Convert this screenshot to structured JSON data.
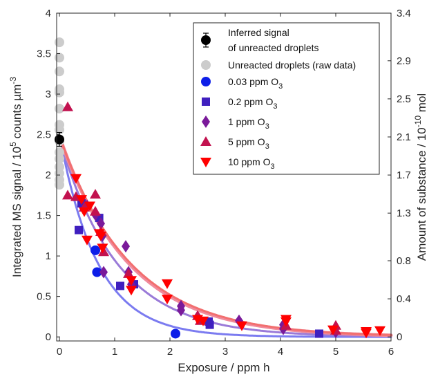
{
  "chart_data": {
    "type": "scatter",
    "xlabel": "Exposure / ppm h",
    "ylabel_left": {
      "text": "Integrated MS signal / 10",
      "sup1": "5",
      "mid": " counts µm",
      "sup2": "-3"
    },
    "ylabel_right": {
      "text": "Amount of substance / 10",
      "sup": "-10",
      "tail": " mol"
    },
    "xlim": [
      -0.05,
      6
    ],
    "ylim": [
      -0.05,
      4
    ],
    "x_ticks": [
      0,
      1,
      2,
      3,
      4,
      5,
      6
    ],
    "y_ticks": [
      0,
      0.5,
      1,
      1.5,
      2,
      2.5,
      3,
      3.5,
      4
    ],
    "x_tick_labels": [
      "0",
      "1",
      "2",
      "3",
      "4",
      "5",
      "6"
    ],
    "y_tick_labels": [
      "0",
      "0.5",
      "1",
      "1.5",
      "2",
      "2.5",
      "3",
      "3.5",
      "4"
    ],
    "right_ticks": [
      0,
      0.4,
      0.8,
      1.3,
      1.7,
      2.1,
      2.5,
      2.9,
      3.4
    ],
    "right_tick_labels": [
      "0",
      "0.4",
      "0.8",
      "1.3",
      "1.7",
      "2.1",
      "2.5",
      "2.9",
      "3.4"
    ],
    "legend_position": "top-right",
    "series": [
      {
        "name": "Inferred signal",
        "name2": "of unreacted droplets",
        "marker": "errorbar",
        "color": "#000000",
        "points": [
          [
            0.0,
            2.44
          ]
        ],
        "err": 0.07
      },
      {
        "name": "Unreacted droplets (raw data)",
        "marker": "circle",
        "color": "#cccccc",
        "points": [
          [
            0.0,
            3.64
          ],
          [
            0.0,
            3.45
          ],
          [
            0.0,
            3.28
          ],
          [
            0.0,
            3.06
          ],
          [
            0.0,
            3.02
          ],
          [
            0.0,
            2.82
          ],
          [
            0.0,
            2.62
          ],
          [
            0.0,
            2.56
          ],
          [
            0.0,
            2.42
          ],
          [
            0.0,
            2.28
          ],
          [
            0.0,
            2.2
          ],
          [
            0.0,
            2.1
          ],
          [
            0.0,
            2.02
          ],
          [
            0.0,
            1.94
          ],
          [
            0.0,
            1.88
          ]
        ]
      },
      {
        "name": "0.03 ppm O",
        "sub": "3",
        "marker": "circle",
        "color": "#0d1ee8",
        "points": [
          [
            0.65,
            1.07
          ],
          [
            0.68,
            0.8
          ],
          [
            2.1,
            0.04
          ]
        ]
      },
      {
        "name": "0.2 ppm O",
        "sub": "3",
        "marker": "square",
        "color": "#3f1fbf",
        "points": [
          [
            0.35,
            1.32
          ],
          [
            0.4,
            1.65
          ],
          [
            0.72,
            1.47
          ],
          [
            1.1,
            0.63
          ],
          [
            1.35,
            0.65
          ],
          [
            2.7,
            0.19
          ],
          [
            2.72,
            0.15
          ],
          [
            4.7,
            0.04
          ]
        ]
      },
      {
        "name": "1 ppm O",
        "sub": "3",
        "marker": "diamond",
        "color": "#7a1a9a",
        "points": [
          [
            0.5,
            1.62
          ],
          [
            0.65,
            1.51
          ],
          [
            0.75,
            1.4
          ],
          [
            0.78,
            1.25
          ],
          [
            0.8,
            0.8
          ],
          [
            1.2,
            1.12
          ],
          [
            1.25,
            0.8
          ],
          [
            1.3,
            0.65
          ],
          [
            2.2,
            0.38
          ],
          [
            2.2,
            0.33
          ],
          [
            2.5,
            0.25
          ],
          [
            3.25,
            0.2
          ],
          [
            4.05,
            0.15
          ],
          [
            4.05,
            0.1
          ],
          [
            5.0,
            0.11
          ],
          [
            5.0,
            0.06
          ]
        ]
      },
      {
        "name": "5 ppm O",
        "sub": "3",
        "marker": "triangle-up",
        "color": "#c2124f",
        "points": [
          [
            0.15,
            2.84
          ],
          [
            0.15,
            1.75
          ],
          [
            0.3,
            1.73
          ],
          [
            0.45,
            1.6
          ],
          [
            0.65,
            1.76
          ],
          [
            0.65,
            1.55
          ],
          [
            0.75,
            1.3
          ],
          [
            0.8,
            1.05
          ],
          [
            1.25,
            0.78
          ],
          [
            2.5,
            0.26
          ],
          [
            2.55,
            0.2
          ],
          [
            4.1,
            0.14
          ],
          [
            5.0,
            0.14
          ],
          [
            5.0,
            0.08
          ]
        ]
      },
      {
        "name": "10 ppm O",
        "sub": "3",
        "marker": "triangle-down",
        "color": "#ff0000",
        "points": [
          [
            0.3,
            1.96
          ],
          [
            0.4,
            1.7
          ],
          [
            0.45,
            1.55
          ],
          [
            0.5,
            1.2
          ],
          [
            0.55,
            1.62
          ],
          [
            0.72,
            1.28
          ],
          [
            0.75,
            1.25
          ],
          [
            0.78,
            1.1
          ],
          [
            1.3,
            0.7
          ],
          [
            1.3,
            0.58
          ],
          [
            1.95,
            0.66
          ],
          [
            1.95,
            0.47
          ],
          [
            2.5,
            0.22
          ],
          [
            2.6,
            0.2
          ],
          [
            3.3,
            0.14
          ],
          [
            4.1,
            0.19
          ],
          [
            4.1,
            0.22
          ],
          [
            4.95,
            0.09
          ],
          [
            5.55,
            0.05
          ],
          [
            5.55,
            0.07
          ],
          [
            5.8,
            0.08
          ]
        ]
      }
    ],
    "fits": [
      {
        "color": "#7b7bf0",
        "a": 2.5,
        "k": 1.45,
        "width": 3
      },
      {
        "color": "#9a7ad8",
        "a": 2.45,
        "k": 0.95,
        "width": 3
      },
      {
        "color": "#f08a9c",
        "a": 2.48,
        "k": 0.8,
        "width": 5
      },
      {
        "color": "#f26f6f",
        "a": 2.48,
        "k": 0.78,
        "width": 3
      }
    ]
  }
}
